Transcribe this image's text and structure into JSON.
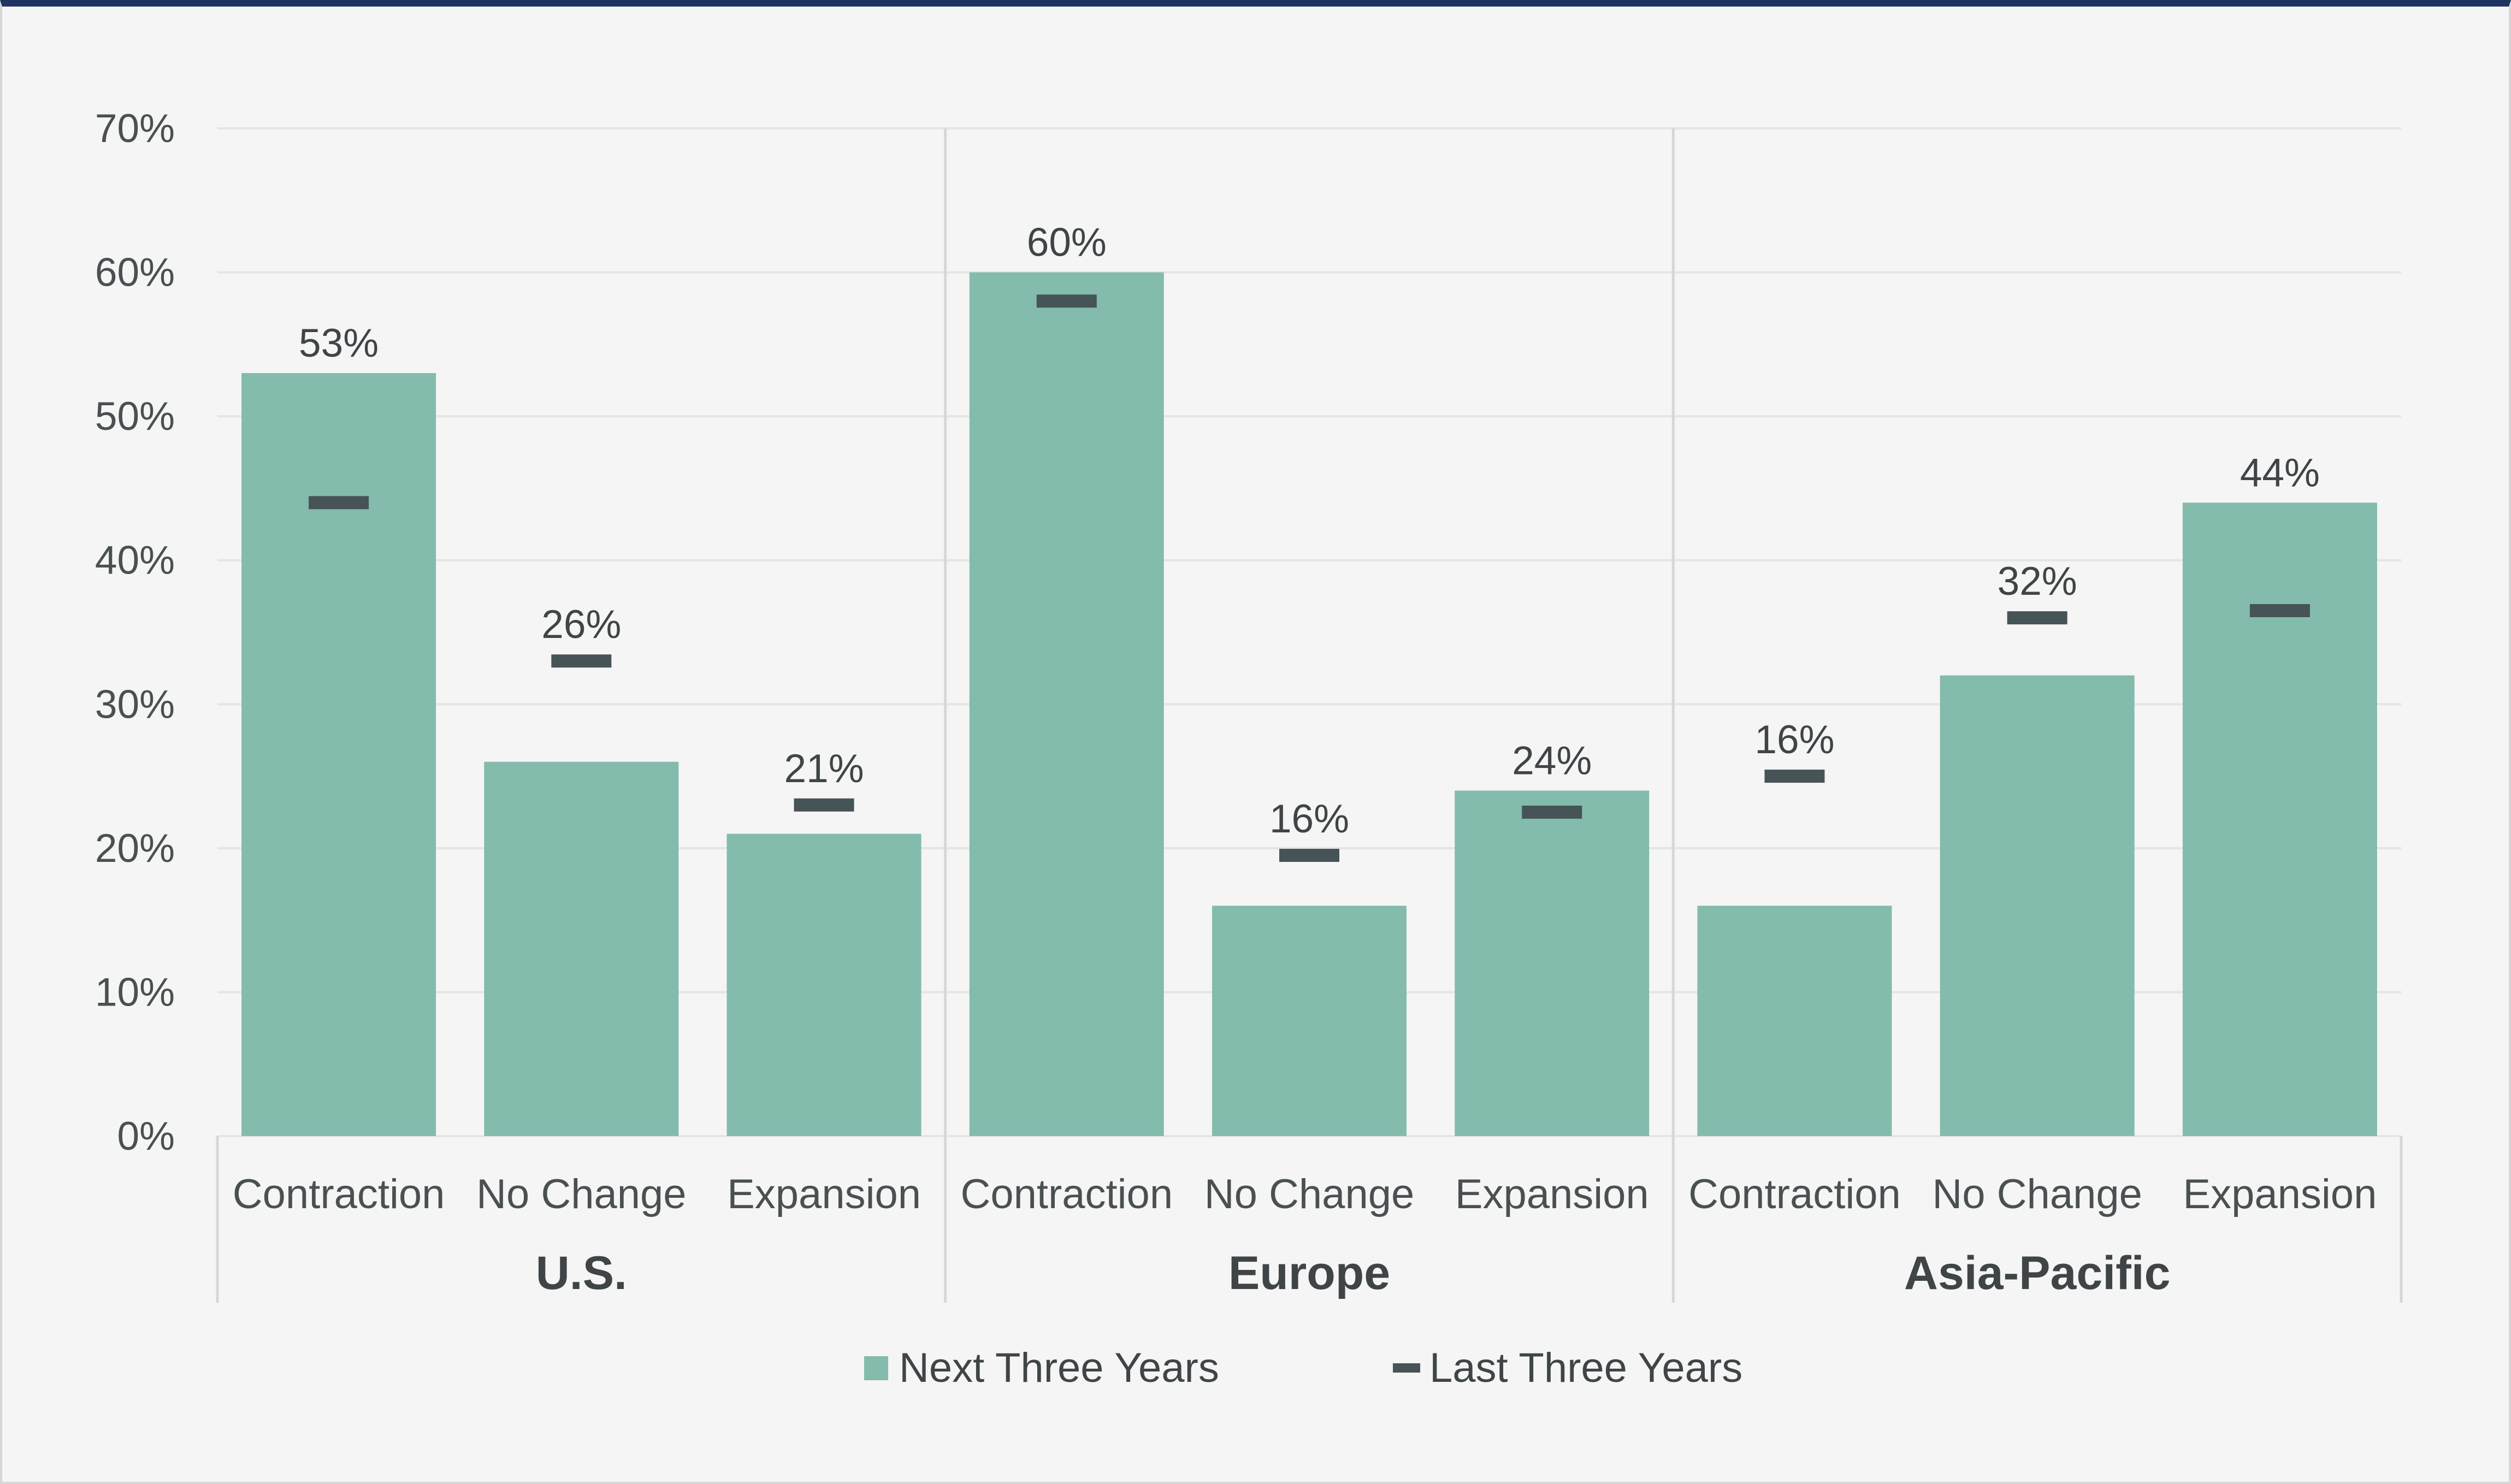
{
  "chart_data": {
    "type": "bar",
    "title": "",
    "xlabel": "",
    "ylabel": "",
    "ylim": [
      0,
      70
    ],
    "yticks": [
      0,
      10,
      20,
      30,
      40,
      50,
      60,
      70
    ],
    "ytick_labels": [
      "0%",
      "10%",
      "20%",
      "30%",
      "40%",
      "50%",
      "60%",
      "70%"
    ],
    "groups": [
      {
        "name": "U.S.",
        "categories": [
          "Contraction",
          "No Change",
          "Expansion"
        ]
      },
      {
        "name": "Europe",
        "categories": [
          "Contraction",
          "No Change",
          "Expansion"
        ]
      },
      {
        "name": "Asia-Pacific",
        "categories": [
          "Contraction",
          "No Change",
          "Expansion"
        ]
      }
    ],
    "series": [
      {
        "name": "Next Three Years",
        "type": "bar",
        "values": [
          53,
          26,
          21,
          60,
          16,
          24,
          16,
          32,
          44
        ],
        "labels": [
          "53%",
          "26%",
          "21%",
          "60%",
          "16%",
          "24%",
          "16%",
          "32%",
          "44%"
        ]
      },
      {
        "name": "Last Three Years",
        "type": "marker",
        "values": [
          44,
          33,
          23,
          58,
          19.5,
          22.5,
          25,
          36,
          36.5
        ]
      }
    ],
    "grid": true,
    "legend_position": "bottom"
  },
  "colors": {
    "bar": "#83bbad",
    "marker": "#465457",
    "grid": "#e3e6e4",
    "separator": "#d4d8d6",
    "top_border": "#1f3461"
  }
}
